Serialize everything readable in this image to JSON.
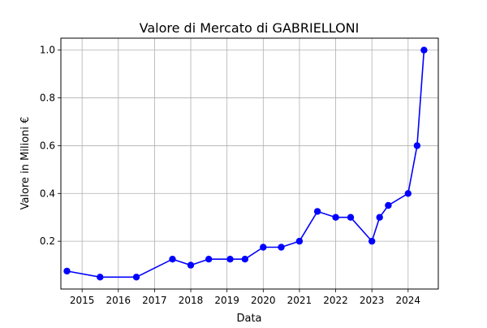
{
  "chart_data": {
    "type": "line",
    "title": "Valore di Mercato di GABRIELLONI",
    "xlabel": "Data",
    "ylabel": "Valore in Milioni €",
    "x_ticks": [
      "2015",
      "2016",
      "2017",
      "2018",
      "2019",
      "2020",
      "2021",
      "2022",
      "2023",
      "2024"
    ],
    "y_ticks": [
      "0.2",
      "0.4",
      "0.6",
      "0.8",
      "1.0"
    ],
    "xlim": [
      "2014-06-01",
      "2024-11-01"
    ],
    "ylim": [
      0,
      1.05
    ],
    "grid": true,
    "series": [
      {
        "color": "#0000ff",
        "marker": "circle",
        "points": [
          {
            "x": "2014-08-01",
            "y": 0.075
          },
          {
            "x": "2015-07-01",
            "y": 0.05
          },
          {
            "x": "2016-07-01",
            "y": 0.05
          },
          {
            "x": "2017-07-01",
            "y": 0.125
          },
          {
            "x": "2018-01-01",
            "y": 0.1
          },
          {
            "x": "2018-07-01",
            "y": 0.125
          },
          {
            "x": "2019-02-01",
            "y": 0.125
          },
          {
            "x": "2019-07-01",
            "y": 0.125
          },
          {
            "x": "2020-01-01",
            "y": 0.175
          },
          {
            "x": "2020-07-01",
            "y": 0.175
          },
          {
            "x": "2021-01-01",
            "y": 0.2
          },
          {
            "x": "2021-07-01",
            "y": 0.325
          },
          {
            "x": "2022-01-01",
            "y": 0.3
          },
          {
            "x": "2022-06-01",
            "y": 0.3
          },
          {
            "x": "2023-01-01",
            "y": 0.2
          },
          {
            "x": "2023-03-20",
            "y": 0.3
          },
          {
            "x": "2023-06-15",
            "y": 0.35
          },
          {
            "x": "2024-01-01",
            "y": 0.4
          },
          {
            "x": "2024-04-01",
            "y": 0.6
          },
          {
            "x": "2024-06-10",
            "y": 1.0
          }
        ]
      }
    ]
  }
}
